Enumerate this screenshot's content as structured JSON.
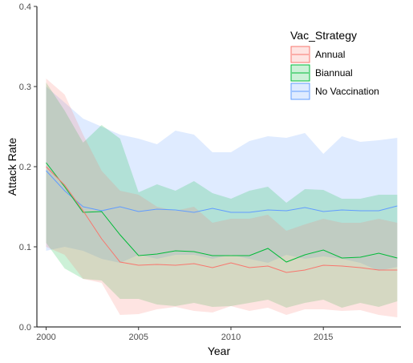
{
  "chart_data": {
    "type": "area",
    "title": "",
    "xlabel": "Year",
    "ylabel": "Attack Rate",
    "xlim": [
      1999.5,
      2019.2
    ],
    "ylim": [
      0,
      0.4
    ],
    "x_ticks": [
      2000,
      2005,
      2010,
      2015
    ],
    "y_ticks": [
      0.0,
      0.1,
      0.2,
      0.3,
      0.4
    ],
    "x_tick_labels": [
      "2000",
      "2005",
      "2010",
      "2015"
    ],
    "y_tick_labels": [
      "0.0",
      "0.1",
      "0.2",
      "0.3",
      "0.4"
    ],
    "grid": false,
    "legend": {
      "title": "Vac_Strategy",
      "position": "top-right-inside"
    },
    "x": [
      2000,
      2001,
      2002,
      2003,
      2004,
      2005,
      2006,
      2007,
      2008,
      2009,
      2010,
      2011,
      2012,
      2013,
      2014,
      2015,
      2016,
      2017,
      2018,
      2019
    ],
    "series": [
      {
        "name": "No Vaccination",
        "color": "#619CFF",
        "values": [
          0.195,
          0.17,
          0.15,
          0.145,
          0.15,
          0.144,
          0.147,
          0.146,
          0.143,
          0.148,
          0.143,
          0.143,
          0.146,
          0.145,
          0.149,
          0.144,
          0.146,
          0.145,
          0.145,
          0.151
        ],
        "lower": [
          0.095,
          0.1,
          0.095,
          0.085,
          0.08,
          0.09,
          0.085,
          0.09,
          0.09,
          0.085,
          0.09,
          0.085,
          0.08,
          0.09,
          0.085,
          0.088,
          0.085,
          0.08,
          0.07,
          0.075
        ],
        "upper": [
          0.3,
          0.28,
          0.26,
          0.25,
          0.24,
          0.235,
          0.228,
          0.245,
          0.24,
          0.218,
          0.218,
          0.232,
          0.238,
          0.236,
          0.242,
          0.216,
          0.238,
          0.231,
          0.233,
          0.236
        ]
      },
      {
        "name": "Biannual",
        "color": "#00BA38",
        "values": [
          0.205,
          0.175,
          0.143,
          0.144,
          0.115,
          0.089,
          0.091,
          0.095,
          0.094,
          0.089,
          0.089,
          0.089,
          0.098,
          0.081,
          0.09,
          0.096,
          0.086,
          0.087,
          0.092,
          0.086
        ],
        "lower": [
          0.105,
          0.073,
          0.06,
          0.058,
          0.035,
          0.035,
          0.028,
          0.026,
          0.03,
          0.025,
          0.026,
          0.03,
          0.034,
          0.024,
          0.03,
          0.034,
          0.024,
          0.03,
          0.025,
          0.032
        ],
        "upper": [
          0.305,
          0.27,
          0.23,
          0.252,
          0.235,
          0.168,
          0.178,
          0.17,
          0.182,
          0.167,
          0.16,
          0.17,
          0.175,
          0.155,
          0.172,
          0.171,
          0.16,
          0.16,
          0.165,
          0.165
        ]
      },
      {
        "name": "Annual",
        "color": "#F8766D",
        "values": [
          0.2,
          0.177,
          0.145,
          0.11,
          0.081,
          0.077,
          0.078,
          0.077,
          0.079,
          0.074,
          0.08,
          0.074,
          0.076,
          0.068,
          0.071,
          0.077,
          0.076,
          0.074,
          0.071,
          0.071
        ],
        "lower": [
          0.1,
          0.09,
          0.06,
          0.055,
          0.015,
          0.016,
          0.022,
          0.025,
          0.02,
          0.018,
          0.026,
          0.02,
          0.024,
          0.015,
          0.022,
          0.022,
          0.02,
          0.021,
          0.015,
          0.012
        ],
        "upper": [
          0.31,
          0.29,
          0.24,
          0.195,
          0.17,
          0.165,
          0.15,
          0.145,
          0.15,
          0.13,
          0.135,
          0.135,
          0.14,
          0.12,
          0.128,
          0.135,
          0.13,
          0.13,
          0.135,
          0.13
        ]
      }
    ],
    "legend_order": [
      "Annual",
      "Biannual",
      "No Vaccination"
    ]
  }
}
